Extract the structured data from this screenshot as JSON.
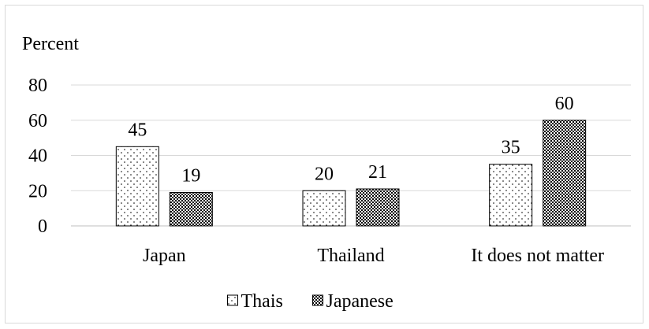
{
  "chart_data": {
    "type": "bar",
    "ylabel": "Percent",
    "categories": [
      "Japan",
      "Thailand",
      "It does not matter"
    ],
    "series": [
      {
        "name": "Thais",
        "values": [
          45,
          20,
          35
        ],
        "pattern": "dots",
        "fill": "#ffffff"
      },
      {
        "name": "Japanese",
        "values": [
          19,
          21,
          60
        ],
        "pattern": "checker",
        "fill": "#000000"
      }
    ],
    "yticks": [
      0,
      20,
      40,
      60,
      80
    ],
    "ylim": [
      0,
      80
    ],
    "grid": true,
    "legend": "bottom-center",
    "colors": {
      "bar_edge": "#000000",
      "grid": "#d9d9d9",
      "axis": "#bfbfbf"
    }
  }
}
